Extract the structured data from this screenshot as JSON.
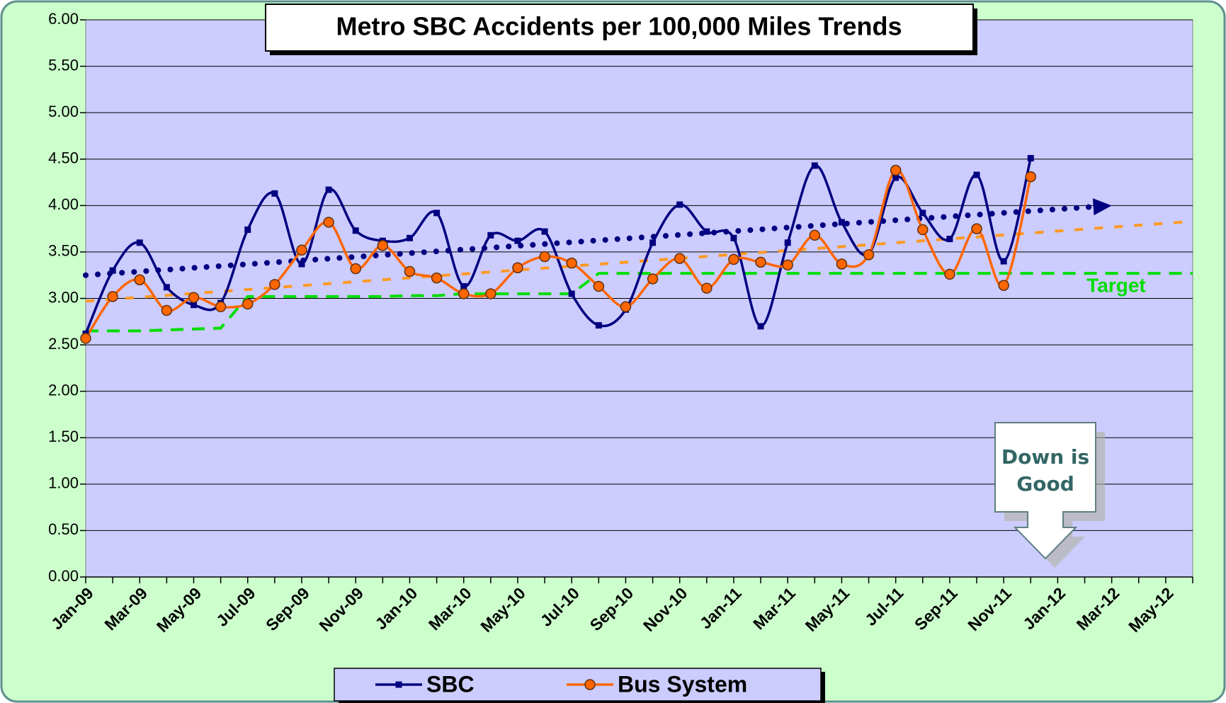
{
  "chart_data": {
    "type": "line",
    "title": "Metro SBC Accidents per 100,000 Miles Trends",
    "categories": [
      "Jan-09",
      null,
      "Mar-09",
      null,
      "May-09",
      null,
      "Jul-09",
      null,
      "Sep-09",
      null,
      "Nov-09",
      null,
      "Jan-10",
      null,
      "Mar-10",
      null,
      "May-10",
      null,
      "Jul-10",
      null,
      "Sep-10",
      null,
      "Nov-10",
      null,
      "Jan-11",
      null,
      "Mar-11",
      null,
      "May-11",
      null,
      "Jul-11",
      null,
      "Sep-11",
      null,
      "Nov-11",
      null,
      "Jan-12",
      null,
      "Mar-12",
      null,
      "May-12",
      null
    ],
    "series": [
      {
        "name": "SBC",
        "color": "#000080",
        "marker": "square",
        "values": [
          2.62,
          3.3,
          3.6,
          3.12,
          2.93,
          2.95,
          3.74,
          4.13,
          3.37,
          4.17,
          3.73,
          3.62,
          3.65,
          3.92,
          3.13,
          3.68,
          3.62,
          3.72,
          3.05,
          2.71,
          2.88,
          3.6,
          4.01,
          3.72,
          3.65,
          2.7,
          3.6,
          4.43,
          3.82,
          3.48,
          4.3,
          3.92,
          3.64,
          4.33,
          3.4,
          4.51,
          null,
          null,
          null,
          null,
          null,
          null
        ],
        "trend": {
          "x": [
            0,
            38
          ],
          "values": [
            3.25,
            4.0
          ]
        }
      },
      {
        "name": "Bus System",
        "color": "#ff6600",
        "marker": "circle",
        "values": [
          2.57,
          3.02,
          3.2,
          2.87,
          3.01,
          2.91,
          2.94,
          3.15,
          3.52,
          3.82,
          3.32,
          3.57,
          3.29,
          3.22,
          3.05,
          3.05,
          3.33,
          3.45,
          3.38,
          3.13,
          2.91,
          3.21,
          3.43,
          3.11,
          3.42,
          3.39,
          3.36,
          3.68,
          3.37,
          3.47,
          4.38,
          3.74,
          3.26,
          3.75,
          3.14,
          4.31,
          null,
          null,
          null,
          null,
          null,
          null
        ],
        "trend": {
          "x": [
            0,
            41
          ],
          "values": [
            2.97,
            3.83
          ]
        }
      }
    ],
    "target": {
      "label": "Target",
      "color": "#00dd00",
      "values": [
        2.65,
        2.65,
        2.65,
        2.66,
        2.67,
        2.68,
        3.02,
        3.02,
        3.02,
        3.02,
        3.02,
        3.02,
        3.03,
        3.03,
        3.05,
        3.05,
        3.05,
        3.05,
        3.05,
        3.27,
        3.27,
        3.27,
        3.27,
        3.27,
        3.27,
        3.27,
        3.27,
        3.27,
        3.27,
        3.27,
        3.27,
        3.27,
        3.27,
        3.27,
        3.27,
        3.27,
        3.27,
        3.27,
        3.27,
        3.27,
        3.27,
        3.27
      ]
    },
    "annotation": {
      "lines": [
        "Down is",
        "Good"
      ]
    },
    "xlim": [
      0,
      41
    ],
    "ylim": [
      0,
      6
    ],
    "yticks": [
      {
        "value": 0,
        "label": "0.00"
      },
      {
        "value": 0.5,
        "label": "0.50"
      },
      {
        "value": 1,
        "label": "1.00"
      },
      {
        "value": 1.5,
        "label": "1.50"
      },
      {
        "value": 2,
        "label": "2.00"
      },
      {
        "value": 2.5,
        "label": "2.50"
      },
      {
        "value": 3,
        "label": "3.00"
      },
      {
        "value": 3.5,
        "label": "3.50"
      },
      {
        "value": 4,
        "label": "4.00"
      },
      {
        "value": 4.5,
        "label": "4.50"
      },
      {
        "value": 5,
        "label": "5.00"
      },
      {
        "value": 5.5,
        "label": "5.50"
      },
      {
        "value": 6,
        "label": "6.00"
      }
    ],
    "grid": true,
    "legend": "bottom"
  }
}
